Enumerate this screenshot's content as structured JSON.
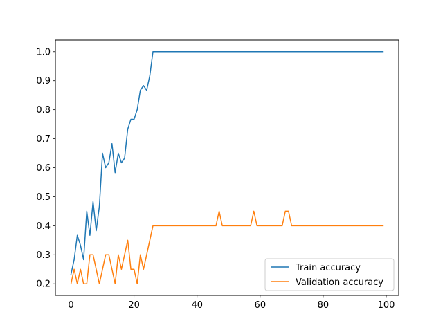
{
  "chart_data": {
    "type": "line",
    "x": [
      0,
      1,
      2,
      3,
      4,
      5,
      6,
      7,
      8,
      9,
      10,
      11,
      12,
      13,
      14,
      15,
      16,
      17,
      18,
      19,
      20,
      21,
      22,
      23,
      24,
      25,
      26,
      27,
      28,
      29,
      30,
      31,
      32,
      33,
      34,
      35,
      36,
      37,
      38,
      39,
      40,
      41,
      42,
      43,
      44,
      45,
      46,
      47,
      48,
      49,
      50,
      51,
      52,
      53,
      54,
      55,
      56,
      57,
      58,
      59,
      60,
      61,
      62,
      63,
      64,
      65,
      66,
      67,
      68,
      69,
      70,
      71,
      72,
      73,
      74,
      75,
      76,
      77,
      78,
      79,
      80,
      81,
      82,
      83,
      84,
      85,
      86,
      87,
      88,
      89,
      90,
      91,
      92,
      93,
      94,
      95,
      96,
      97,
      98,
      99
    ],
    "series": [
      {
        "name": "Train accuracy",
        "color": "#1f77b4",
        "values": [
          0.233,
          0.283,
          0.367,
          0.333,
          0.283,
          0.45,
          0.367,
          0.483,
          0.383,
          0.467,
          0.65,
          0.6,
          0.617,
          0.683,
          0.583,
          0.65,
          0.617,
          0.633,
          0.733,
          0.767,
          0.767,
          0.8,
          0.867,
          0.883,
          0.867,
          0.917,
          1.0,
          1.0,
          1.0,
          1.0,
          1.0,
          1.0,
          1.0,
          1.0,
          1.0,
          1.0,
          1.0,
          1.0,
          1.0,
          1.0,
          1.0,
          1.0,
          1.0,
          1.0,
          1.0,
          1.0,
          1.0,
          1.0,
          1.0,
          1.0,
          1.0,
          1.0,
          1.0,
          1.0,
          1.0,
          1.0,
          1.0,
          1.0,
          1.0,
          1.0,
          1.0,
          1.0,
          1.0,
          1.0,
          1.0,
          1.0,
          1.0,
          1.0,
          1.0,
          1.0,
          1.0,
          1.0,
          1.0,
          1.0,
          1.0,
          1.0,
          1.0,
          1.0,
          1.0,
          1.0,
          1.0,
          1.0,
          1.0,
          1.0,
          1.0,
          1.0,
          1.0,
          1.0,
          1.0,
          1.0,
          1.0,
          1.0,
          1.0,
          1.0,
          1.0,
          1.0,
          1.0,
          1.0,
          1.0,
          1.0
        ]
      },
      {
        "name": "Validation accuracy",
        "color": "#ff7f0e",
        "values": [
          0.2,
          0.25,
          0.2,
          0.25,
          0.2,
          0.2,
          0.3,
          0.3,
          0.25,
          0.2,
          0.25,
          0.3,
          0.3,
          0.25,
          0.2,
          0.3,
          0.25,
          0.3,
          0.35,
          0.25,
          0.25,
          0.2,
          0.3,
          0.25,
          0.3,
          0.35,
          0.4,
          0.4,
          0.4,
          0.4,
          0.4,
          0.4,
          0.4,
          0.4,
          0.4,
          0.4,
          0.4,
          0.4,
          0.4,
          0.4,
          0.4,
          0.4,
          0.4,
          0.4,
          0.4,
          0.4,
          0.4,
          0.45,
          0.4,
          0.4,
          0.4,
          0.4,
          0.4,
          0.4,
          0.4,
          0.4,
          0.4,
          0.4,
          0.45,
          0.4,
          0.4,
          0.4,
          0.4,
          0.4,
          0.4,
          0.4,
          0.4,
          0.4,
          0.45,
          0.45,
          0.4,
          0.4,
          0.4,
          0.4,
          0.4,
          0.4,
          0.4,
          0.4,
          0.4,
          0.4,
          0.4,
          0.4,
          0.4,
          0.4,
          0.4,
          0.4,
          0.4,
          0.4,
          0.4,
          0.4,
          0.4,
          0.4,
          0.4,
          0.4,
          0.4,
          0.4,
          0.4,
          0.4,
          0.4,
          0.4
        ]
      }
    ],
    "x_ticks": [
      "0",
      "20",
      "40",
      "60",
      "80",
      "100"
    ],
    "y_ticks": [
      "0.2",
      "0.3",
      "0.4",
      "0.5",
      "0.6",
      "0.7",
      "0.8",
      "0.9",
      "1.0"
    ],
    "xlim": [
      -4.95,
      103.95
    ],
    "ylim": [
      0.16,
      1.04
    ],
    "title": "",
    "xlabel": "",
    "ylabel": "",
    "grid": false,
    "legend_position": "lower-right"
  }
}
